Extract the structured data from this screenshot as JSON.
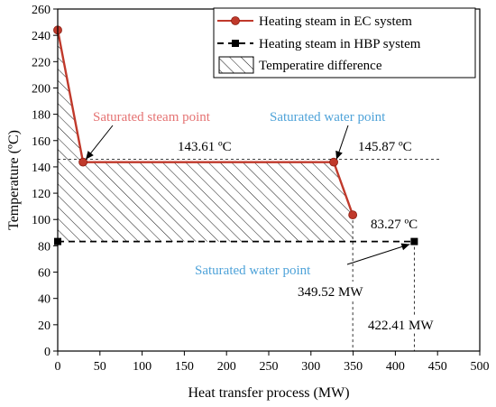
{
  "chart_data": {
    "type": "line",
    "xlabel": "Heat transfer process (MW)",
    "ylabel": "Temperature (ºC)",
    "xlim": [
      0,
      500
    ],
    "ylim": [
      0,
      260
    ],
    "xticks": [
      0,
      50,
      100,
      150,
      200,
      250,
      300,
      350,
      400,
      450,
      500
    ],
    "yticks": [
      0,
      20,
      40,
      60,
      80,
      100,
      120,
      140,
      160,
      180,
      200,
      220,
      240,
      260
    ],
    "grid": false,
    "legend_position": "top-right",
    "series": [
      {
        "name": "Heating steam in EC system",
        "color": "#c0392b",
        "marker": "circle",
        "line_style": "solid",
        "x": [
          0,
          30,
          327,
          349.52
        ],
        "y": [
          244,
          143.61,
          143.61,
          103.5
        ]
      },
      {
        "name": "Heating steam in HBP system",
        "color": "#000000",
        "marker": "square",
        "line_style": "dashed",
        "x": [
          0,
          422.41
        ],
        "y": [
          83.27,
          83.27
        ]
      }
    ],
    "hatched_region": {
      "name": "Temperatire difference",
      "pattern": "diagonal-hatch"
    },
    "annotations": {
      "saturated_steam": "Saturated steam point",
      "saturated_water_ec": "Saturated water point",
      "saturated_water_hbp": "Saturated water point",
      "temp_1": "143.61 ºC",
      "temp_2": "145.87 ºC",
      "temp_3": "83.27 ºC",
      "power_1": "349.52 MW",
      "power_2": "422.41 MW"
    },
    "colors": {
      "ec_line": "#c0392b",
      "hbp_line": "#000000",
      "steam_box_text": "#e57373",
      "water_box_text": "#4fa3d9"
    }
  }
}
